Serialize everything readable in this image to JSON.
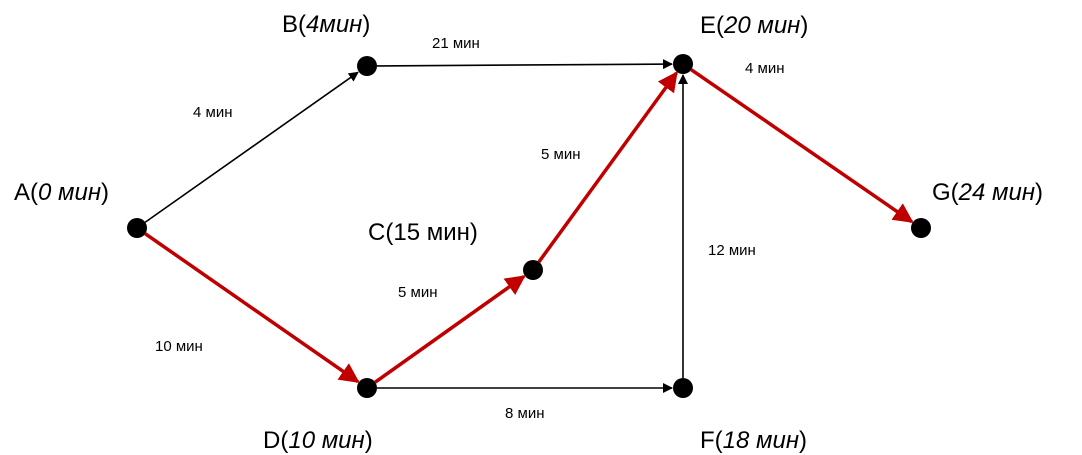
{
  "nodes": [
    {
      "id": "A",
      "name": "A",
      "time": "0 мин",
      "italic": true
    },
    {
      "id": "B",
      "name": "B",
      "time": "4мин",
      "italic": true
    },
    {
      "id": "C",
      "name": "C",
      "time": "15 мин",
      "italic": false
    },
    {
      "id": "D",
      "name": "D",
      "time": "10 мин",
      "italic": true
    },
    {
      "id": "E",
      "name": "E",
      "time": "20 мин",
      "italic": true
    },
    {
      "id": "F",
      "name": "F",
      "time": "18 мин",
      "italic": true
    },
    {
      "id": "G",
      "name": "G",
      "time": "24 мин",
      "italic": true
    }
  ],
  "edges": [
    {
      "id": "A-B",
      "from": "A",
      "to": "B",
      "label": "4 мин",
      "critical": false
    },
    {
      "id": "A-D",
      "from": "A",
      "to": "D",
      "label": "10 мин",
      "critical": true
    },
    {
      "id": "B-E",
      "from": "B",
      "to": "E",
      "label": "21 мин",
      "critical": false
    },
    {
      "id": "D-C",
      "from": "D",
      "to": "C",
      "label": "5 мин",
      "critical": true
    },
    {
      "id": "C-E",
      "from": "C",
      "to": "E",
      "label": "5 мин",
      "critical": true
    },
    {
      "id": "D-F",
      "from": "D",
      "to": "F",
      "label": "8 мин",
      "critical": false
    },
    {
      "id": "F-E",
      "from": "F",
      "to": "E",
      "label": "12 мин",
      "critical": false
    },
    {
      "id": "E-G",
      "from": "E",
      "to": "G",
      "label": "4 мин",
      "critical": true
    }
  ],
  "colors": {
    "critical": "#c00000",
    "normal": "#000000",
    "node": "#000000"
  }
}
